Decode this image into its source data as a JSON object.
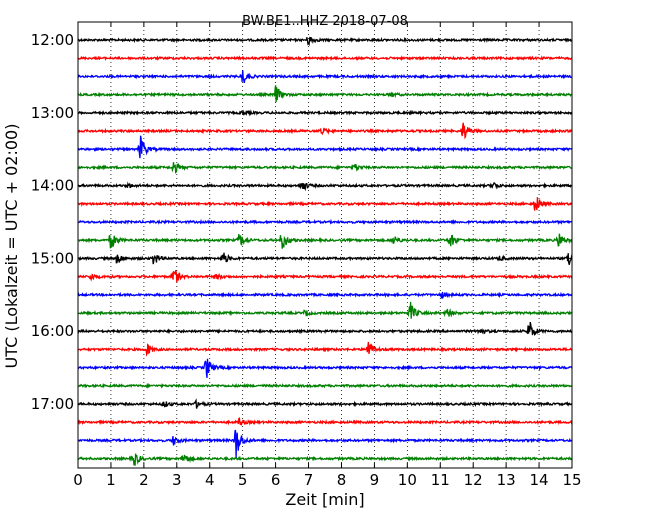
{
  "chart_data": {
    "type": "line",
    "title": "BW.BE1..HHZ 2018-07-08",
    "xlabel": "Zeit  [min]",
    "ylabel": "UTC (Lokalzeit = UTC + 02:00)",
    "xlim": [
      0,
      15
    ],
    "x_ticks": [
      "0",
      "1",
      "2",
      "3",
      "4",
      "5",
      "6",
      "7",
      "8",
      "9",
      "10",
      "11",
      "12",
      "13",
      "14",
      "15"
    ],
    "y_ticks": [
      "12:00",
      "13:00",
      "14:00",
      "15:00",
      "16:00",
      "17:00"
    ],
    "grid": "vertical dotted",
    "colors": [
      "#000000",
      "#ff0000",
      "#0000ff",
      "#008000"
    ],
    "traces": [
      {
        "start": "12:00",
        "color": "#000000",
        "events": [
          {
            "t": 7.0,
            "a": 0.45
          }
        ]
      },
      {
        "start": "12:15",
        "color": "#ff0000",
        "events": []
      },
      {
        "start": "12:30",
        "color": "#0000ff",
        "events": [
          {
            "t": 5.0,
            "a": 0.7
          }
        ]
      },
      {
        "start": "12:45",
        "color": "#008000",
        "events": [
          {
            "t": 6.0,
            "a": 0.8
          },
          {
            "t": 9.5,
            "a": 0.2
          }
        ]
      },
      {
        "start": "13:00",
        "color": "#000000",
        "events": [
          {
            "t": 5.0,
            "a": 0.15
          }
        ]
      },
      {
        "start": "13:15",
        "color": "#ff0000",
        "events": [
          {
            "t": 7.4,
            "a": 0.3
          },
          {
            "t": 11.7,
            "a": 0.9
          }
        ]
      },
      {
        "start": "13:30",
        "color": "#0000ff",
        "events": [
          {
            "t": 1.9,
            "a": 1.2
          }
        ]
      },
      {
        "start": "13:45",
        "color": "#008000",
        "events": [
          {
            "t": 2.9,
            "a": 0.6
          },
          {
            "t": 8.4,
            "a": 0.3
          }
        ]
      },
      {
        "start": "14:00",
        "color": "#000000",
        "events": [
          {
            "t": 1.5,
            "a": 0.2
          },
          {
            "t": 6.8,
            "a": 0.5
          },
          {
            "t": 12.6,
            "a": 0.3
          }
        ]
      },
      {
        "start": "14:15",
        "color": "#ff0000",
        "events": [
          {
            "t": 13.9,
            "a": 0.85
          }
        ]
      },
      {
        "start": "14:30",
        "color": "#0000ff",
        "events": []
      },
      {
        "start": "14:45",
        "color": "#008000",
        "events": [
          {
            "t": 1.0,
            "a": 0.8
          },
          {
            "t": 4.9,
            "a": 0.6
          },
          {
            "t": 6.2,
            "a": 0.9
          },
          {
            "t": 9.6,
            "a": 0.4
          },
          {
            "t": 11.3,
            "a": 0.7
          },
          {
            "t": 14.6,
            "a": 0.7
          }
        ]
      },
      {
        "start": "15:00",
        "color": "#000000",
        "events": [
          {
            "t": 1.2,
            "a": 0.5
          },
          {
            "t": 2.3,
            "a": 0.6
          },
          {
            "t": 4.4,
            "a": 0.6
          },
          {
            "t": 12.8,
            "a": 0.2
          },
          {
            "t": 14.9,
            "a": 0.8
          }
        ]
      },
      {
        "start": "15:15",
        "color": "#ff0000",
        "events": [
          {
            "t": 0.4,
            "a": 0.3
          },
          {
            "t": 2.9,
            "a": 0.9
          },
          {
            "t": 4.2,
            "a": 0.25
          }
        ]
      },
      {
        "start": "15:30",
        "color": "#0000ff",
        "events": [
          {
            "t": 11.0,
            "a": 0.3
          }
        ]
      },
      {
        "start": "15:45",
        "color": "#008000",
        "events": [
          {
            "t": 6.9,
            "a": 0.25
          },
          {
            "t": 10.1,
            "a": 0.85
          },
          {
            "t": 11.2,
            "a": 0.4
          }
        ]
      },
      {
        "start": "16:00",
        "color": "#000000",
        "events": [
          {
            "t": 12.2,
            "a": 0.3
          },
          {
            "t": 13.7,
            "a": 1.0
          }
        ]
      },
      {
        "start": "16:15",
        "color": "#ff0000",
        "events": [
          {
            "t": 2.1,
            "a": 0.5
          },
          {
            "t": 8.8,
            "a": 0.9
          }
        ]
      },
      {
        "start": "16:30",
        "color": "#0000ff",
        "events": [
          {
            "t": 3.9,
            "a": 1.0
          }
        ]
      },
      {
        "start": "16:45",
        "color": "#008000",
        "events": []
      },
      {
        "start": "17:00",
        "color": "#000000",
        "events": [
          {
            "t": 2.6,
            "a": 0.3
          },
          {
            "t": 3.6,
            "a": 0.3
          }
        ]
      },
      {
        "start": "17:15",
        "color": "#ff0000",
        "events": [
          {
            "t": 4.9,
            "a": 0.3
          }
        ]
      },
      {
        "start": "17:30",
        "color": "#0000ff",
        "events": [
          {
            "t": 2.9,
            "a": 0.4
          },
          {
            "t": 4.8,
            "a": 1.6
          }
        ]
      },
      {
        "start": "17:45",
        "color": "#008000",
        "events": [
          {
            "t": 1.7,
            "a": 0.7
          },
          {
            "t": 3.2,
            "a": 0.5
          }
        ]
      }
    ]
  }
}
